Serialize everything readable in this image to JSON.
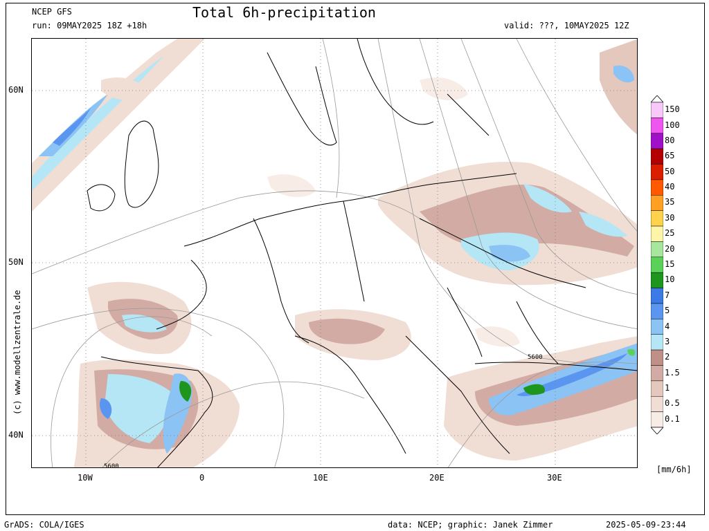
{
  "header": {
    "model": "NCEP GFS",
    "title": "Total 6h-precipitation",
    "run": "run: 09MAY2025 18Z +18h",
    "valid": "valid: ???, 10MAY2025 12Z"
  },
  "map": {
    "lat_labels": [
      "60N",
      "50N",
      "40N"
    ],
    "lon_labels": [
      "10W",
      "0",
      "10E",
      "20E",
      "30E"
    ],
    "contour_labels": [
      "5600",
      "5600"
    ],
    "watermark": "(c) www.modellzentrale.de"
  },
  "colorbar": {
    "levels": [
      "150",
      "100",
      "80",
      "65",
      "50",
      "40",
      "35",
      "30",
      "25",
      "20",
      "15",
      "10",
      "7",
      "5",
      "4",
      "3",
      "2",
      "1.5",
      "1",
      "0.5",
      "0.1"
    ],
    "colors": [
      "#f8c8f8",
      "#ef55ef",
      "#a010c8",
      "#b40000",
      "#dc1e00",
      "#ff5a00",
      "#ffa024",
      "#ffd24c",
      "#fff5a8",
      "#a8e6a0",
      "#5ad25a",
      "#1e961e",
      "#3c7be6",
      "#5a96f0",
      "#8cc3f5",
      "#b4e6f5",
      "#bf9088",
      "#d2aca4",
      "#e4c8be",
      "#f0ddd4",
      "#f8ece6"
    ],
    "unit": "[mm/6h]"
  },
  "footer": {
    "left": "GrADS: COLA/IGES",
    "center": "data: NCEP; graphic: Janek Zimmer",
    "right": "2025-05-09-23:44"
  }
}
